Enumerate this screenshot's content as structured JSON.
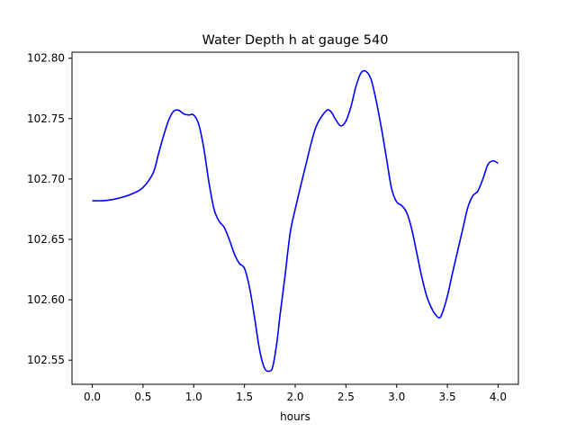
{
  "chart_data": {
    "type": "line",
    "title": "Water Depth h at gauge 540",
    "xlabel": "hours",
    "ylabel": "",
    "xlim": [
      -0.2,
      4.2
    ],
    "ylim": [
      102.53,
      102.805
    ],
    "grid": false,
    "x_ticks": [
      0.0,
      0.5,
      1.0,
      1.5,
      2.0,
      2.5,
      3.0,
      3.5,
      4.0
    ],
    "x_tick_labels": [
      "0.0",
      "0.5",
      "1.0",
      "1.5",
      "2.0",
      "2.5",
      "3.0",
      "3.5",
      "4.0"
    ],
    "y_ticks": [
      102.55,
      102.6,
      102.65,
      102.7,
      102.75,
      102.8
    ],
    "y_tick_labels": [
      "102.55",
      "102.60",
      "102.65",
      "102.70",
      "102.75",
      "102.80"
    ],
    "series": [
      {
        "color": "#0000ff",
        "x": [
          0.0,
          0.1,
          0.2,
          0.3,
          0.4,
          0.5,
          0.6,
          0.65,
          0.7,
          0.75,
          0.8,
          0.85,
          0.9,
          0.95,
          1.0,
          1.05,
          1.1,
          1.15,
          1.2,
          1.25,
          1.3,
          1.35,
          1.4,
          1.45,
          1.5,
          1.55,
          1.6,
          1.65,
          1.7,
          1.75,
          1.78,
          1.82,
          1.85,
          1.9,
          1.95,
          2.0,
          2.1,
          2.2,
          2.3,
          2.35,
          2.4,
          2.45,
          2.5,
          2.55,
          2.6,
          2.65,
          2.7,
          2.75,
          2.8,
          2.85,
          2.9,
          2.95,
          3.0,
          3.05,
          3.1,
          3.15,
          3.2,
          3.25,
          3.3,
          3.35,
          3.38,
          3.42,
          3.45,
          3.5,
          3.55,
          3.6,
          3.65,
          3.7,
          3.75,
          3.8,
          3.85,
          3.9,
          3.95,
          4.0
        ],
        "y": [
          102.682,
          102.682,
          102.683,
          102.685,
          102.688,
          102.693,
          102.705,
          102.72,
          102.735,
          102.748,
          102.756,
          102.757,
          102.754,
          102.753,
          102.753,
          102.745,
          102.725,
          102.697,
          102.675,
          102.665,
          102.66,
          102.65,
          102.638,
          102.63,
          102.626,
          102.61,
          102.585,
          102.558,
          102.543,
          102.541,
          102.545,
          102.565,
          102.587,
          102.62,
          102.655,
          102.675,
          102.71,
          102.742,
          102.756,
          102.756,
          102.749,
          102.744,
          102.748,
          102.76,
          102.777,
          102.788,
          102.789,
          102.782,
          102.764,
          102.742,
          102.717,
          102.692,
          102.681,
          102.678,
          102.672,
          102.658,
          102.638,
          102.618,
          102.602,
          102.592,
          102.588,
          102.585,
          102.589,
          102.603,
          102.622,
          102.64,
          102.658,
          102.676,
          102.686,
          102.69,
          102.7,
          102.712,
          102.715,
          102.713
        ]
      }
    ]
  }
}
